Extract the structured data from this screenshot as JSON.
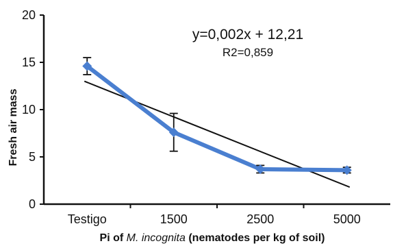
{
  "chart_data": {
    "type": "line",
    "categories": [
      "Testigo",
      "1500",
      "2500",
      "5000"
    ],
    "series": [
      {
        "values": [
          14.6,
          7.6,
          3.7,
          3.6
        ],
        "error": [
          0.9,
          2.0,
          0.4,
          0.3
        ],
        "color": "#4a7fd0"
      }
    ],
    "trendline": {
      "start": 13.0,
      "end": 1.8,
      "color": "#111111",
      "equation": "y=0,002x + 12,21",
      "r2": "R2=0,859"
    },
    "ylim": [
      0,
      20
    ],
    "yticks": [
      "0",
      "5",
      "10",
      "15",
      "20"
    ],
    "ylabel": "Fresh air mass",
    "xlabel_parts": [
      "Pi of ",
      "M. incognita",
      " (nematodes per kg of soil)"
    ],
    "grid": false
  }
}
